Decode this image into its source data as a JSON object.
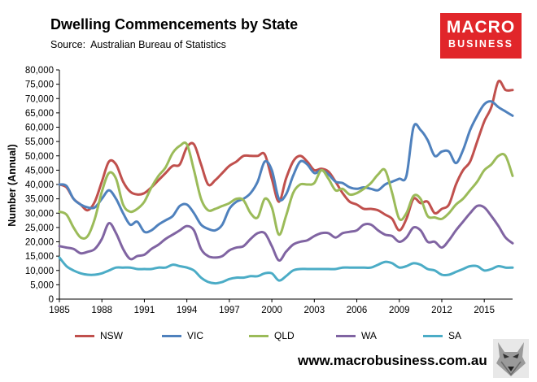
{
  "header": {
    "title": "Dwelling Commencements by State",
    "source_label": "Source:",
    "source_value": "Australian Bureau of Statistics"
  },
  "logo": {
    "line1": "MACRO",
    "line2": "BUSINESS",
    "color": "#e1262a"
  },
  "footer": {
    "website": "www.macrobusiness.com.au",
    "mascot_icon": "wolf-icon"
  },
  "chart_data": {
    "type": "line",
    "title": "Dwelling Commencements by State",
    "ylabel": "Number (Annual)",
    "xlabel": "",
    "xlim": [
      1985,
      2017
    ],
    "ylim": [
      0,
      80000
    ],
    "grid": false,
    "legend_position": "bottom",
    "x_ticks": [
      1985,
      1988,
      1991,
      1994,
      1997,
      2000,
      2003,
      2006,
      2009,
      2012,
      2015
    ],
    "y_ticks": [
      0,
      5000,
      10000,
      15000,
      20000,
      25000,
      30000,
      35000,
      40000,
      45000,
      50000,
      55000,
      60000,
      65000,
      70000,
      75000,
      80000
    ],
    "y_tick_labels": [
      "0",
      "5,000",
      "10,000",
      "15,000",
      "20,000",
      "25,000",
      "30,000",
      "35,000",
      "40,000",
      "45,000",
      "50,000",
      "55,000",
      "60,000",
      "65,000",
      "70,000",
      "75,000",
      "80,000"
    ],
    "series": [
      {
        "name": "NSW",
        "color": "#c0504d",
        "x": [
          1985,
          1985.5,
          1986,
          1986.5,
          1987,
          1987.5,
          1988,
          1988.5,
          1989,
          1989.5,
          1990,
          1990.5,
          1991,
          1991.5,
          1992,
          1992.5,
          1993,
          1993.5,
          1994,
          1994.5,
          1995,
          1995.5,
          1996,
          1996.5,
          1997,
          1997.5,
          1998,
          1998.5,
          1999,
          1999.5,
          2000,
          2000.5,
          2001,
          2001.5,
          2002,
          2002.5,
          2003,
          2003.5,
          2004,
          2004.5,
          2005,
          2005.5,
          2006,
          2006.5,
          2007,
          2007.5,
          2008,
          2008.5,
          2009,
          2009.5,
          2010,
          2010.5,
          2011,
          2011.5,
          2012,
          2012.5,
          2013,
          2013.5,
          2014,
          2014.5,
          2015,
          2015.5,
          2016,
          2016.5,
          2017
        ],
        "values": [
          40000,
          39000,
          35000,
          33000,
          31000,
          34000,
          41000,
          48000,
          47000,
          41000,
          37500,
          36500,
          37000,
          39000,
          41500,
          44000,
          46500,
          47000,
          53000,
          54000,
          47000,
          40000,
          41500,
          44000,
          46500,
          48000,
          50000,
          50000,
          50000,
          50500,
          42000,
          34000,
          42000,
          48000,
          50000,
          48000,
          45000,
          45500,
          44500,
          41000,
          37000,
          34000,
          33000,
          31500,
          31500,
          31000,
          29500,
          28000,
          24000,
          28000,
          35000,
          33500,
          34000,
          30000,
          31500,
          33000,
          40000,
          45000,
          48000,
          55000,
          62000,
          67000,
          76000,
          73000,
          73000
        ]
      },
      {
        "name": "VIC",
        "color": "#4f81bd",
        "x": [
          1985,
          1985.5,
          1986,
          1986.5,
          1987,
          1987.5,
          1988,
          1988.5,
          1989,
          1989.5,
          1990,
          1990.5,
          1991,
          1991.5,
          1992,
          1992.5,
          1993,
          1993.5,
          1994,
          1994.5,
          1995,
          1995.5,
          1996,
          1996.5,
          1997,
          1997.5,
          1998,
          1998.5,
          1999,
          1999.5,
          2000,
          2000.5,
          2001,
          2001.5,
          2002,
          2002.5,
          2003,
          2003.5,
          2004,
          2004.5,
          2005,
          2005.5,
          2006,
          2006.5,
          2007,
          2007.5,
          2008,
          2008.5,
          2009,
          2009.5,
          2010,
          2010.5,
          2011,
          2011.5,
          2012,
          2012.5,
          2013,
          2013.5,
          2014,
          2014.5,
          2015,
          2015.5,
          2016,
          2016.5,
          2017
        ],
        "values": [
          40000,
          39500,
          35000,
          33000,
          32000,
          32000,
          35000,
          38000,
          35000,
          30000,
          26000,
          27000,
          23500,
          24000,
          26000,
          27500,
          29000,
          32500,
          33000,
          30000,
          26000,
          24500,
          24000,
          26000,
          31500,
          34000,
          35000,
          37000,
          41000,
          48000,
          45000,
          35000,
          36500,
          43000,
          48000,
          47000,
          44000,
          45000,
          43500,
          41000,
          40500,
          39000,
          38500,
          39000,
          38500,
          38000,
          40000,
          41000,
          42000,
          43000,
          60000,
          59000,
          55500,
          50000,
          51500,
          51500,
          47500,
          52000,
          59000,
          64000,
          68000,
          69000,
          67000,
          65500,
          64000
        ]
      },
      {
        "name": "QLD",
        "color": "#9bbb59",
        "x": [
          1985,
          1985.5,
          1986,
          1986.5,
          1987,
          1987.5,
          1988,
          1988.5,
          1989,
          1989.5,
          1990,
          1990.5,
          1991,
          1991.5,
          1992,
          1992.5,
          1993,
          1993.5,
          1994,
          1994.5,
          1995,
          1995.5,
          1996,
          1996.5,
          1997,
          1997.5,
          1998,
          1998.5,
          1999,
          1999.5,
          2000,
          2000.5,
          2001,
          2001.5,
          2002,
          2002.5,
          2003,
          2003.5,
          2004,
          2004.5,
          2005,
          2005.5,
          2006,
          2006.5,
          2007,
          2007.5,
          2008,
          2008.5,
          2009,
          2009.5,
          2010,
          2010.5,
          2011,
          2011.5,
          2012,
          2012.5,
          2013,
          2013.5,
          2014,
          2014.5,
          2015,
          2015.5,
          2016,
          2016.5,
          2017
        ],
        "values": [
          30500,
          29500,
          25000,
          21500,
          22000,
          28000,
          37500,
          44000,
          42000,
          33000,
          30500,
          31500,
          34000,
          39000,
          43000,
          46000,
          51000,
          53500,
          54000,
          45000,
          35000,
          31000,
          31500,
          32500,
          33500,
          35000,
          34500,
          30000,
          28500,
          35000,
          32000,
          22500,
          29000,
          37000,
          40000,
          40000,
          40500,
          45000,
          42000,
          38000,
          38500,
          36500,
          37000,
          38500,
          40500,
          43500,
          45000,
          37000,
          28000,
          30000,
          36000,
          35000,
          29000,
          28500,
          28000,
          30000,
          33000,
          35000,
          38000,
          41000,
          45000,
          47000,
          50000,
          50000,
          43000
        ]
      },
      {
        "name": "WA",
        "color": "#8064a2",
        "x": [
          1985,
          1985.5,
          1986,
          1986.5,
          1987,
          1987.5,
          1988,
          1988.5,
          1989,
          1989.5,
          1990,
          1990.5,
          1991,
          1991.5,
          1992,
          1992.5,
          1993,
          1993.5,
          1994,
          1994.5,
          1995,
          1995.5,
          1996,
          1996.5,
          1997,
          1997.5,
          1998,
          1998.5,
          1999,
          1999.5,
          2000,
          2000.5,
          2001,
          2001.5,
          2002,
          2002.5,
          2003,
          2003.5,
          2004,
          2004.5,
          2005,
          2005.5,
          2006,
          2006.5,
          2007,
          2007.5,
          2008,
          2008.5,
          2009,
          2009.5,
          2010,
          2010.5,
          2011,
          2011.5,
          2012,
          2012.5,
          2013,
          2013.5,
          2014,
          2014.5,
          2015,
          2015.5,
          2016,
          2016.5,
          2017
        ],
        "values": [
          18500,
          18000,
          17500,
          16000,
          16500,
          17500,
          21000,
          26500,
          23000,
          17500,
          14000,
          15000,
          15500,
          17500,
          19000,
          21000,
          22500,
          24000,
          25500,
          24000,
          17500,
          15000,
          14500,
          15000,
          17000,
          18000,
          18500,
          21000,
          23000,
          23000,
          18500,
          13500,
          16500,
          19000,
          20000,
          20500,
          22000,
          23000,
          23000,
          21500,
          23000,
          23500,
          24000,
          26000,
          26000,
          24000,
          22500,
          22000,
          20000,
          21500,
          25000,
          24000,
          20000,
          20000,
          18000,
          20500,
          24000,
          27000,
          30000,
          32500,
          32000,
          29000,
          25500,
          21500,
          19500
        ]
      },
      {
        "name": "SA",
        "color": "#4bacc6",
        "x": [
          1985,
          1985.5,
          1986,
          1986.5,
          1987,
          1987.5,
          1988,
          1988.5,
          1989,
          1989.5,
          1990,
          1990.5,
          1991,
          1991.5,
          1992,
          1992.5,
          1993,
          1993.5,
          1994,
          1994.5,
          1995,
          1995.5,
          1996,
          1996.5,
          1997,
          1997.5,
          1998,
          1998.5,
          1999,
          1999.5,
          2000,
          2000.5,
          2001,
          2001.5,
          2002,
          2002.5,
          2003,
          2003.5,
          2004,
          2004.5,
          2005,
          2005.5,
          2006,
          2006.5,
          2007,
          2007.5,
          2008,
          2008.5,
          2009,
          2009.5,
          2010,
          2010.5,
          2011,
          2011.5,
          2012,
          2012.5,
          2013,
          2013.5,
          2014,
          2014.5,
          2015,
          2015.5,
          2016,
          2016.5,
          2017
        ],
        "values": [
          14500,
          11500,
          10000,
          9000,
          8500,
          8500,
          9000,
          10000,
          11000,
          11000,
          11000,
          10500,
          10500,
          10500,
          11000,
          11000,
          12000,
          11500,
          11000,
          10000,
          7500,
          6000,
          5500,
          6000,
          7000,
          7500,
          7500,
          8000,
          8000,
          9000,
          9000,
          6500,
          8000,
          10000,
          10500,
          10500,
          10500,
          10500,
          10500,
          10500,
          11000,
          11000,
          11000,
          11000,
          11000,
          12000,
          13000,
          12500,
          11000,
          11500,
          12500,
          12000,
          10500,
          10000,
          8500,
          8500,
          9500,
          10500,
          11500,
          11500,
          10000,
          10500,
          11500,
          11000,
          11000
        ]
      }
    ]
  }
}
